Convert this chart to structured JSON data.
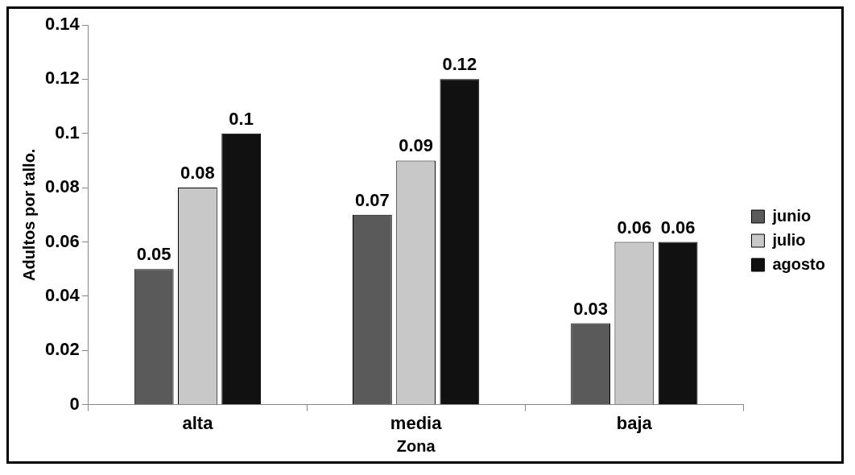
{
  "chart_data": {
    "type": "bar",
    "xlabel": "Zona",
    "ylabel": "Adultos por tallo.",
    "categories": [
      "alta",
      "media",
      "baja"
    ],
    "series": [
      {
        "name": "junio",
        "color": "#5a5a5a",
        "values": [
          0.05,
          0.07,
          0.03
        ]
      },
      {
        "name": "julio",
        "color": "#c8c8c8",
        "values": [
          0.08,
          0.09,
          0.06
        ]
      },
      {
        "name": "agosto",
        "color": "#111111",
        "values": [
          0.1,
          0.12,
          0.06
        ]
      }
    ],
    "ylim": [
      0,
      0.14
    ],
    "yticks": [
      0,
      0.02,
      0.04,
      0.06,
      0.08,
      0.1,
      0.12,
      0.14
    ],
    "grid": false,
    "legend": "right",
    "data_labels": true
  }
}
